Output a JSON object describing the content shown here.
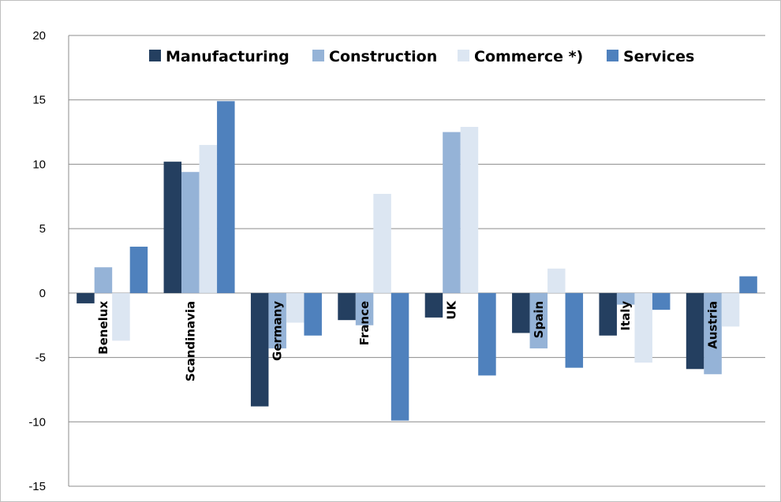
{
  "chart_data": {
    "type": "bar",
    "title": "",
    "xlabel": "",
    "ylabel": "",
    "ylim": [
      -15,
      20
    ],
    "yticks": [
      20,
      15,
      10,
      5,
      0,
      -5,
      -10,
      -15
    ],
    "grid": true,
    "legend_placement": "top",
    "categories": [
      "Benelux",
      "Scandinavia",
      "Germany",
      "France",
      "UK",
      "Spain",
      "Italy",
      "Austria"
    ],
    "series": [
      {
        "name": "Manufacturing",
        "color": "#243f60",
        "values": [
          -0.8,
          10.2,
          -8.8,
          -2.1,
          -1.9,
          -3.1,
          -3.3,
          -5.9
        ]
      },
      {
        "name": "Construction",
        "color": "#95b3d7",
        "values": [
          2.0,
          9.4,
          -4.3,
          -2.5,
          12.5,
          -4.3,
          -0.9,
          -6.3
        ]
      },
      {
        "name": "Commerce *)",
        "color": "#dce6f2",
        "values": [
          -3.7,
          11.5,
          -2.3,
          7.7,
          12.9,
          1.9,
          -5.4,
          -2.6
        ]
      },
      {
        "name": "Services",
        "color": "#4f81bd",
        "values": [
          3.6,
          14.9,
          -3.3,
          -9.9,
          -6.4,
          -5.8,
          -1.3,
          1.3
        ]
      }
    ]
  }
}
